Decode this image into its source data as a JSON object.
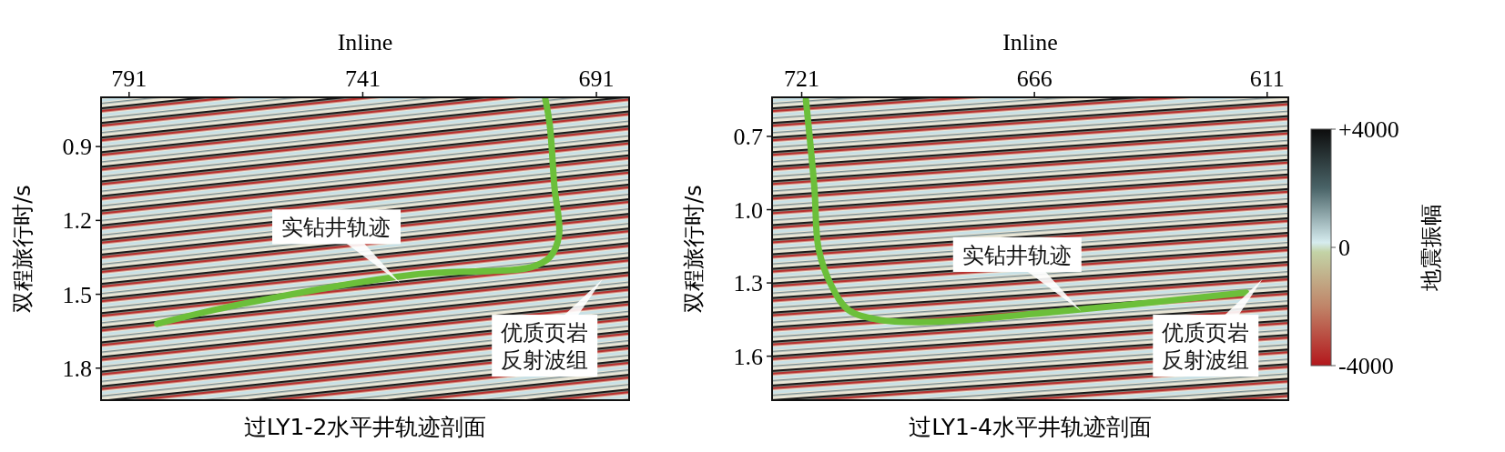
{
  "chart_data": [
    {
      "type": "line",
      "title": "过LY1-2水平井轨迹剖面",
      "xlabel": "Inline",
      "ylabel": "双程旅行时/s",
      "xlim": [
        797,
        684
      ],
      "xticks": [
        791,
        741,
        691
      ],
      "ylim": [
        1.93,
        0.7
      ],
      "yticks": [
        0.9,
        1.2,
        1.5,
        1.8
      ],
      "series": [
        {
          "color": "#6cbf3a",
          "x": [
            785,
            767,
            730,
            705,
            701,
            699,
            700,
            701,
            702
          ],
          "values": [
            1.62,
            1.54,
            1.42,
            1.39,
            1.35,
            1.26,
            1.06,
            0.81,
            0.7
          ]
        }
      ],
      "annotations": [
        {
          "text": "实钻井轨迹",
          "x": 733,
          "y": 1.44
        },
        "优质页岩反射波组"
      ]
    },
    {
      "type": "line",
      "title": "过LY1-4水平井轨迹剖面",
      "xlabel": "Inline",
      "ylabel": "双程旅行时/s",
      "xlim": [
        728,
        606
      ],
      "xticks": [
        721,
        666,
        611
      ],
      "ylim": [
        1.78,
        0.54
      ],
      "yticks": [
        0.7,
        {
          "value": 1,
          "label": "1.0"
        },
        1.3,
        1.6
      ],
      "series": [
        {
          "color": "#6cbf3a",
          "x": [
            720,
            718,
            717,
            714,
            710,
            703,
            691,
            662,
            616
          ],
          "values": [
            0.55,
            0.91,
            1.16,
            1.31,
            1.41,
            1.45,
            1.46,
            1.42,
            1.34
          ]
        }
      ],
      "annotations": [
        {
          "text": "实钻井轨迹",
          "x": 655,
          "y": 1.4
        },
        "优质页岩反射波组"
      ]
    },
    {
      "type": "other",
      "clabel": "地震振幅",
      "annotations": [
        "+4000",
        "0",
        "-4000"
      ]
    }
  ]
}
